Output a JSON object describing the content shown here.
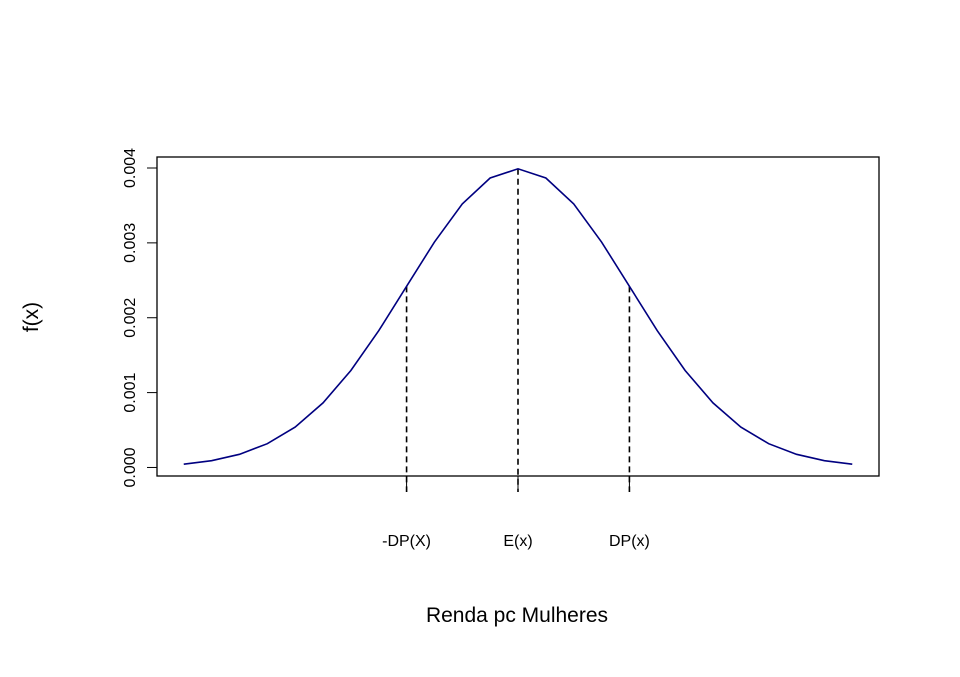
{
  "chart_data": {
    "type": "line",
    "x_label": "Renda pc Mulheres",
    "y_label": "f(x)",
    "x": [
      -300,
      -275,
      -250,
      -225,
      -200,
      -175,
      -150,
      -125,
      -100,
      -75,
      -50,
      -25,
      0,
      25,
      50,
      75,
      100,
      125,
      150,
      175,
      200,
      225,
      250,
      275,
      300
    ],
    "series": [
      {
        "color": "#000080",
        "values": [
          4.43e-05,
          9.09e-05,
          0.0001753,
          0.0003174,
          0.0005399,
          0.0008628,
          0.0012952,
          0.0018265,
          0.0024197,
          0.0030114,
          0.0035207,
          0.0038667,
          0.0039894,
          0.0038667,
          0.0035207,
          0.0030114,
          0.0024197,
          0.0018265,
          0.0012952,
          0.0008628,
          0.0005399,
          0.0003174,
          0.0001753,
          9.09e-05,
          4.43e-05
        ]
      }
    ],
    "xlim": [
      -324,
      324
    ],
    "ylim": [
      -0.000114,
      0.004147
    ],
    "xticks": [
      {
        "value": -100,
        "label": "-DP(X)"
      },
      {
        "value": 0,
        "label": "E(x)"
      },
      {
        "value": 100,
        "label": "DP(x)"
      }
    ],
    "yticks": [
      {
        "value": 0,
        "label": "0.000"
      },
      {
        "value": 0.001,
        "label": "0.001"
      },
      {
        "value": 0.002,
        "label": "0.002"
      },
      {
        "value": 0.003,
        "label": "0.003"
      },
      {
        "value": 0.004,
        "label": "0.004"
      }
    ],
    "dashed_lines": [
      8,
      12,
      16
    ]
  }
}
